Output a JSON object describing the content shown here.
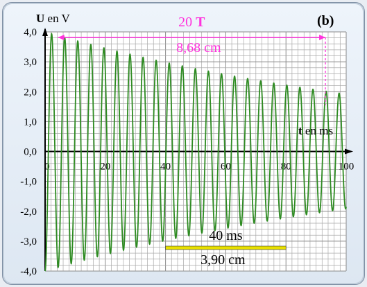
{
  "chart_data": {
    "type": "line",
    "panel_label": "(b)",
    "ylabel_bold": "U",
    "ylabel_rest": " en V",
    "xlabel_bold": "t",
    "xlabel_rest": " en ms",
    "xlim": [
      0,
      100
    ],
    "ylim": [
      -4,
      4
    ],
    "x_ticks": [
      "0",
      "20",
      "40",
      "60",
      "80",
      "100"
    ],
    "y_ticks": [
      "4,0",
      "3,0",
      "2,0",
      "1,0",
      "0,0",
      "-1,0",
      "-2,0",
      "-3,0",
      "-4,0"
    ],
    "grid": true,
    "series": [
      {
        "color": "#2e8b22",
        "amplitude": 4.0,
        "period_ms": 4.34,
        "damping_time_ms": 136,
        "phase_deg": 180
      }
    ],
    "annotations": {
      "periods_top": "20",
      "periods_unit": "T",
      "periods_bottom": "8,68 cm",
      "periods_x_start": 4.3,
      "periods_x_end": 93.1,
      "scale_top": "40 ms",
      "scale_bottom": "3,90 cm",
      "scale_x_start": 40,
      "scale_x_end": 80,
      "scale_y": -3.2,
      "annotation_color": "#ff33dd",
      "scale_color": "#e8e000"
    }
  }
}
